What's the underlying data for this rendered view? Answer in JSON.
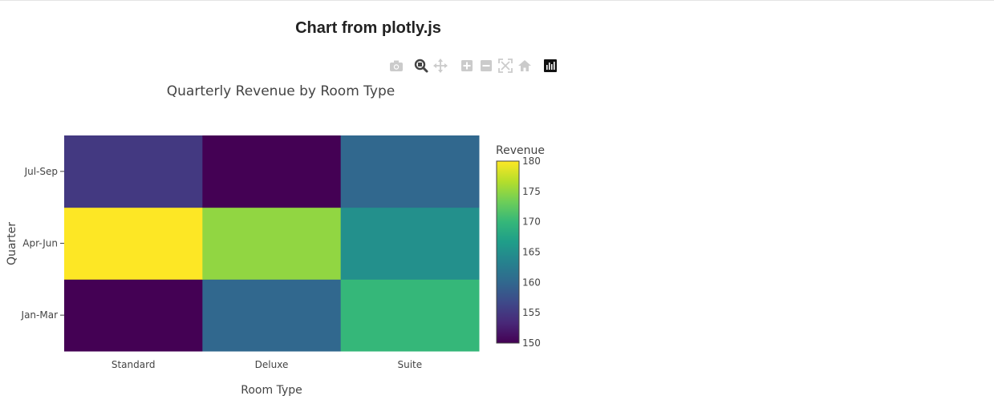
{
  "page": {
    "header": "Chart from plotly.js"
  },
  "modebar": {
    "buttons": [
      {
        "name": "camera-icon",
        "title": "Download plot as a png"
      },
      {
        "name": "zoom-icon",
        "title": "Zoom"
      },
      {
        "name": "pan-icon",
        "title": "Pan"
      },
      {
        "name": "zoom-in-icon",
        "title": "Zoom in"
      },
      {
        "name": "zoom-out-icon",
        "title": "Zoom out"
      },
      {
        "name": "autoscale-icon",
        "title": "Autoscale"
      },
      {
        "name": "reset-axes-icon",
        "title": "Reset axes"
      },
      {
        "name": "plotly-logo-icon",
        "title": "Produced with Plotly"
      }
    ]
  },
  "chart_data": {
    "type": "heatmap",
    "title": "Quarterly Revenue by Room Type",
    "xlabel": "Room Type",
    "ylabel": "Quarter",
    "x": [
      "Standard",
      "Deluxe",
      "Suite"
    ],
    "y": [
      "Jan-Mar",
      "Apr-Jun",
      "Jul-Sep"
    ],
    "z": [
      [
        150,
        160,
        170
      ],
      [
        180,
        175,
        165
      ],
      [
        155,
        150,
        160
      ]
    ],
    "colorscale": "Viridis",
    "zmin": 150,
    "zmax": 180,
    "colorbar": {
      "title": "Revenue",
      "ticks": [
        150,
        155,
        160,
        165,
        170,
        175,
        180
      ]
    }
  }
}
